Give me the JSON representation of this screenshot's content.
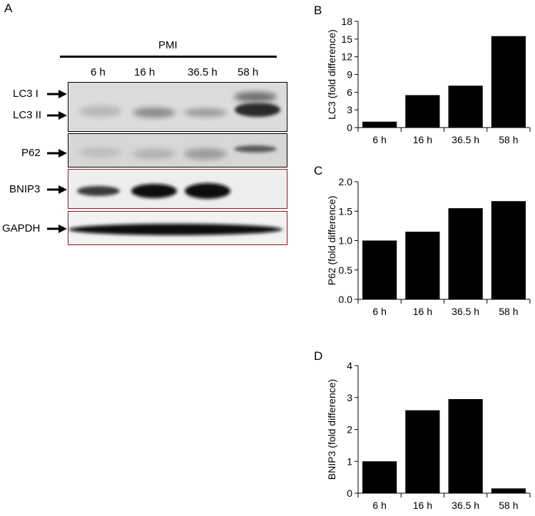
{
  "figure": {
    "panel_a": "A",
    "header": "PMI",
    "lanes": [
      "6 h",
      "16 h",
      "36.5 h",
      "58 h"
    ],
    "rows": {
      "lc3_1": "LC3 I",
      "lc3_2": "LC3 II",
      "p62": "P62",
      "bnip3": "BNIP3",
      "gapdh": "GAPDH"
    },
    "box_colors": {
      "plain": "#000000",
      "highlight": "#8b1a1a"
    }
  },
  "chart_data": [
    {
      "panel": "B",
      "type": "bar",
      "categories": [
        "6 h",
        "16 h",
        "36.5 h",
        "58 h"
      ],
      "values": [
        1.0,
        5.5,
        7.1,
        15.5
      ],
      "ylabel": "LC3 (fold difference)",
      "ylim": [
        0,
        18
      ],
      "yticks": [
        "0",
        "3",
        "6",
        "9",
        "12",
        "15",
        "18"
      ],
      "bar_color": "#000000",
      "grid": false
    },
    {
      "panel": "C",
      "type": "bar",
      "categories": [
        "6 h",
        "16 h",
        "36.5 h",
        "58 h"
      ],
      "values": [
        1.0,
        1.15,
        1.55,
        1.67
      ],
      "ylabel": "P62 (fold difference)",
      "ylim": [
        0,
        2
      ],
      "yticks": [
        "0.0",
        "0.5",
        "1.0",
        "1.5",
        "2.0"
      ],
      "bar_color": "#000000",
      "grid": false
    },
    {
      "panel": "D",
      "type": "bar",
      "categories": [
        "6 h",
        "16 h",
        "36.5 h",
        "58 h"
      ],
      "values": [
        1.0,
        2.6,
        2.95,
        0.15
      ],
      "ylabel": "BNIP3 (fold difference)",
      "ylim": [
        0,
        4
      ],
      "yticks": [
        "0",
        "1",
        "2",
        "3",
        "4"
      ],
      "bar_color": "#000000",
      "grid": false
    }
  ]
}
